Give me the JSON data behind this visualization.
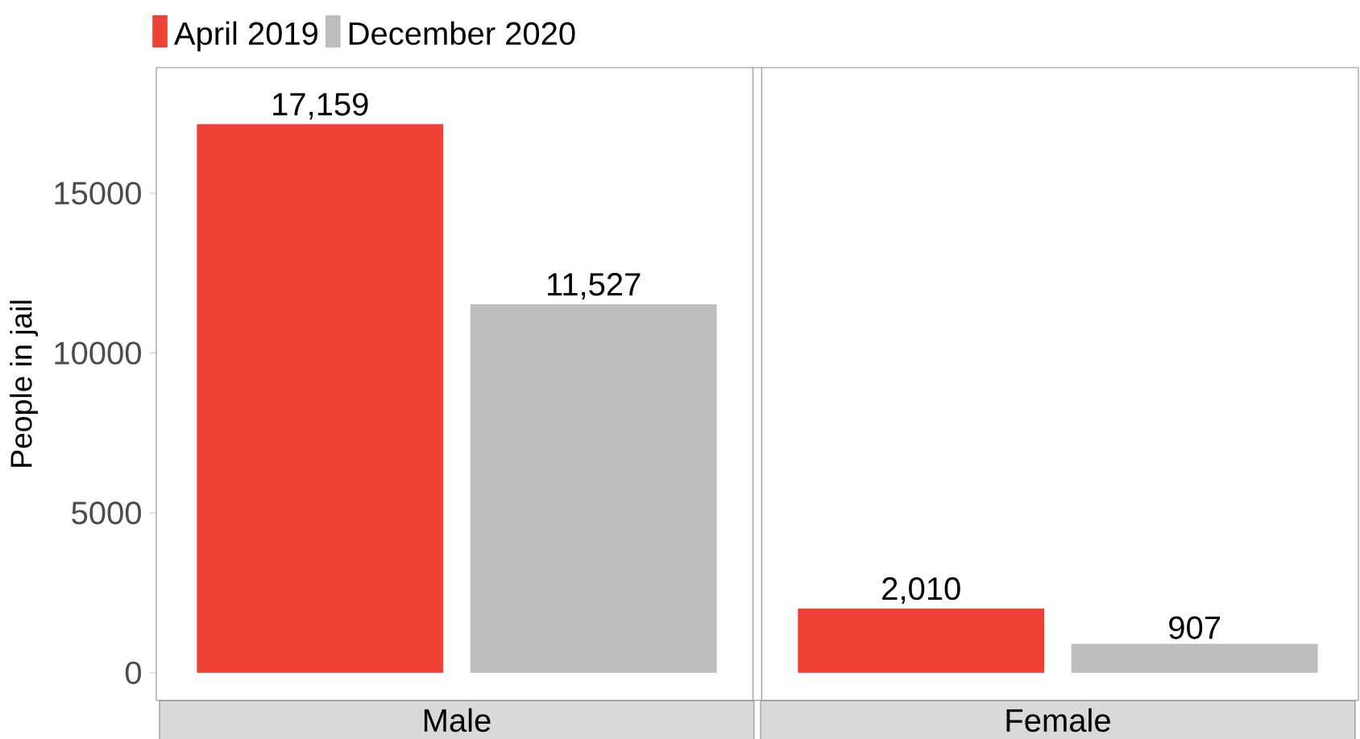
{
  "chart_data": {
    "type": "bar",
    "ylabel": "People in jail",
    "categories": [
      "Male",
      "Female"
    ],
    "ylim": [
      -860,
      18930
    ],
    "yticks": [
      0,
      5000,
      10000,
      15000
    ],
    "legend": "top left",
    "series": [
      {
        "name": "April 2019",
        "color": "#ef4136",
        "values": [
          17159,
          2010
        ],
        "value_labels": [
          "17,159",
          "2,010"
        ]
      },
      {
        "name": "December 2020",
        "color": "#bebebe",
        "values": [
          11527,
          907
        ],
        "value_labels": [
          "11,527",
          "907"
        ]
      }
    ]
  }
}
